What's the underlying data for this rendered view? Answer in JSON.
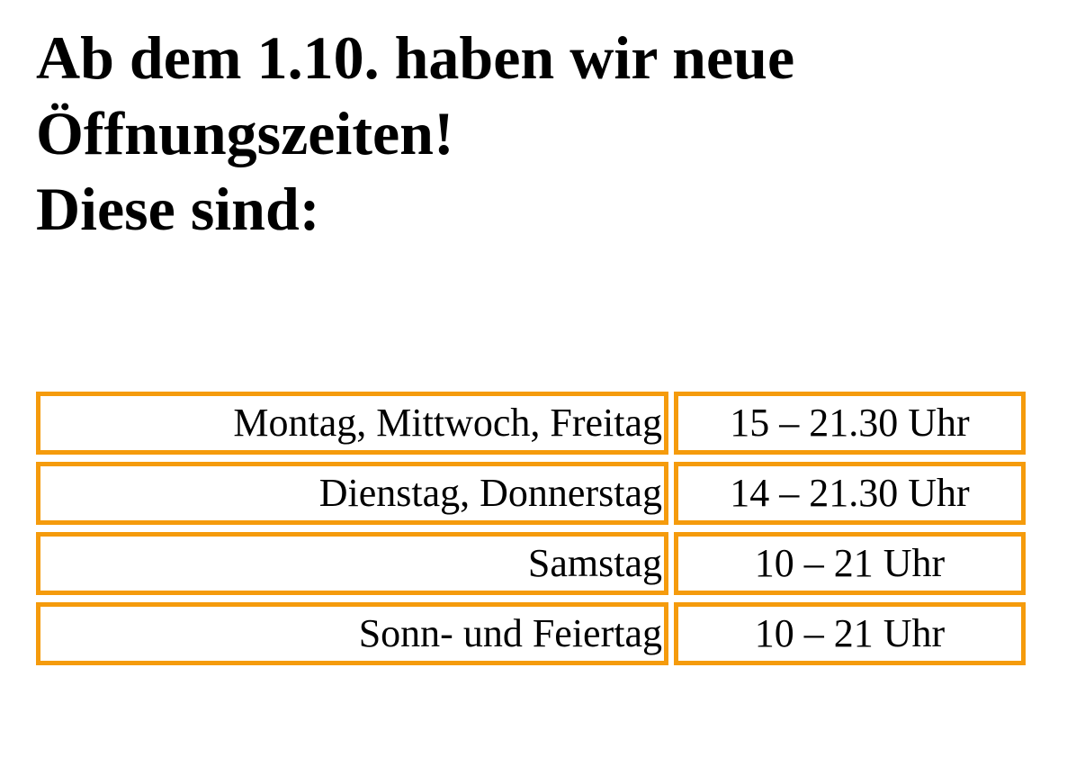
{
  "headline": {
    "line1": "Ab dem 1.10. haben wir neue",
    "line2": "Öffnungszeiten!",
    "line3": "Diese sind:"
  },
  "hours": [
    {
      "days": "Montag, Mittwoch, Freitag",
      "time": "15 – 21.30 Uhr"
    },
    {
      "days": "Dienstag, Donnerstag",
      "time": "14 – 21.30 Uhr"
    },
    {
      "days": "Samstag",
      "time": "10 – 21 Uhr"
    },
    {
      "days": "Sonn- und Feiertag",
      "time": "10 – 21 Uhr"
    }
  ],
  "colors": {
    "border": "#f59b0c",
    "text": "#000000",
    "background": "#ffffff"
  }
}
